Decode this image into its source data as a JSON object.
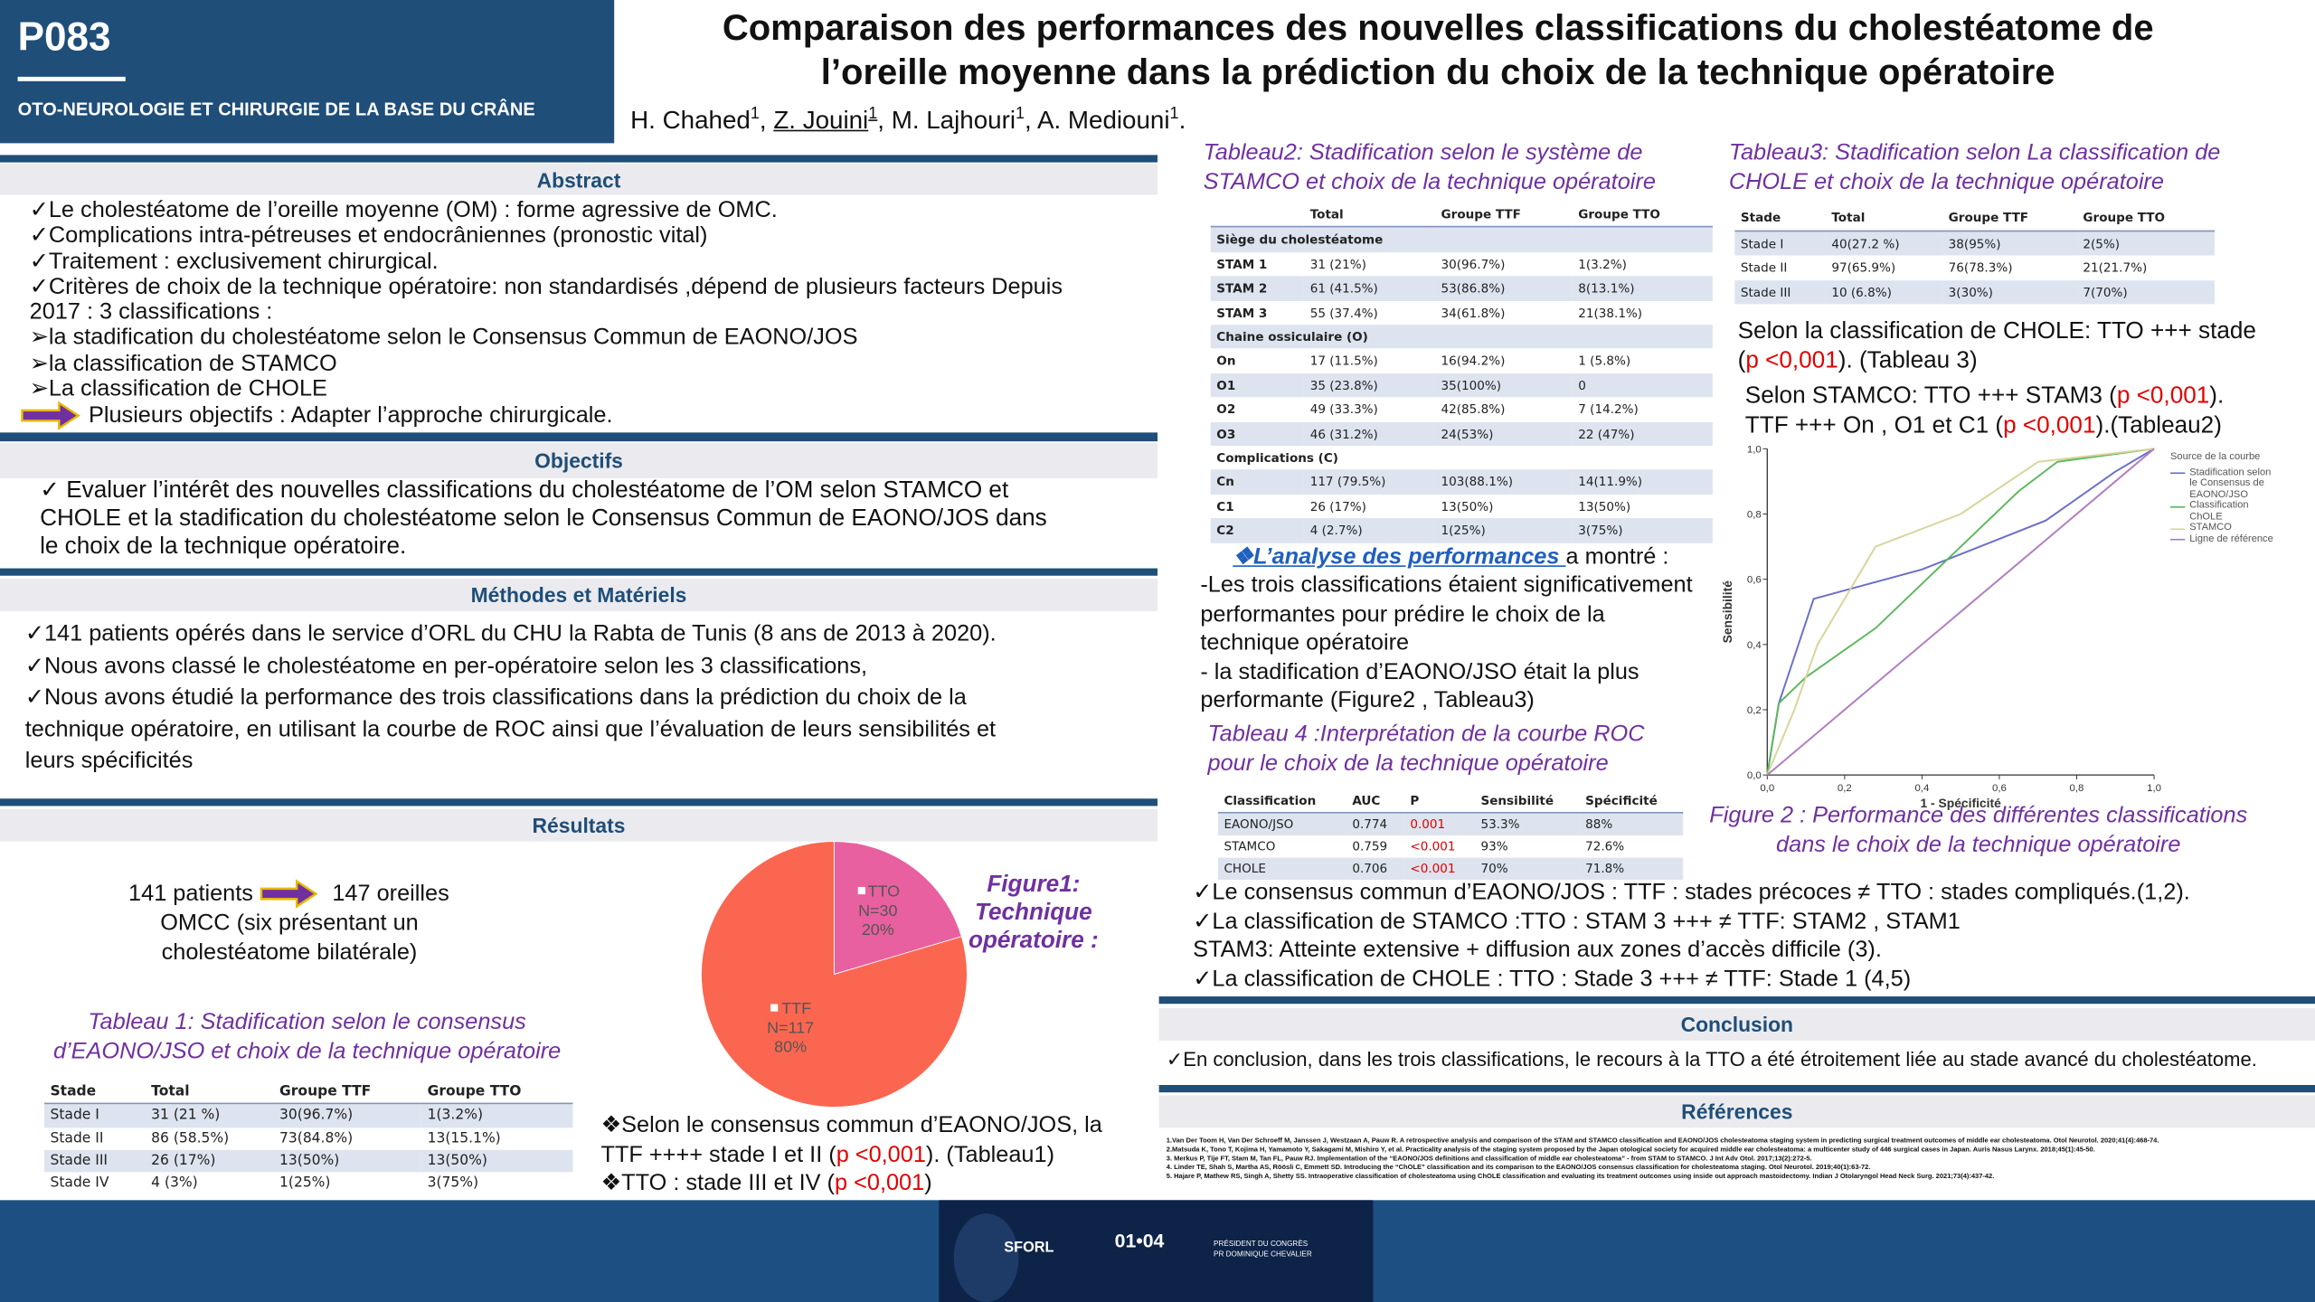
{
  "header": {
    "code": "P083",
    "section": "OTO-NEUROLOGIE ET CHIRURGIE DE LA BASE DU CRÂNE",
    "title": [
      "Comparaison des performances des nouvelles classifications du cholestéatome de",
      "l’oreille moyenne dans la prédiction du choix de la technique opératoire"
    ],
    "authors": [
      "H. Chahed",
      {
        "text": "1",
        "sup": true
      },
      ", ",
      {
        "text": "Z. Jouini",
        "underline": true
      },
      {
        "text": "1",
        "sup": true,
        "underline": true
      },
      ", M. Lajhouri",
      {
        "text": "1",
        "sup": true
      },
      ", A. Mediouni",
      {
        "text": "1",
        "sup": true
      },
      "."
    ]
  },
  "abstract": {
    "heading": "Abstract",
    "lines": [
      "✓Le cholestéatome de l’oreille moyenne (OM) : forme agressive de OMC.",
      "✓Complications intra-pétreuses et endocrâniennes (pronostic vital)",
      "✓Traitement : exclusivement chirurgical.",
      "✓Critères de choix de la technique opératoire: non standardisés ,dépend de plusieurs facteurs Depuis",
      "2017 : 3 classifications :",
      "➢la stadification du cholestéatome selon le Consensus Commun de EAONO/JOS",
      "➢la classification de STAMCO",
      "➢La classification de CHOLE"
    ],
    "goal": "Plusieurs objectifs : Adapter l’approche chirurgicale."
  },
  "objectives": {
    "heading": "Objectifs",
    "lines": [
      "✓ Evaluer l’intérêt des nouvelles classifications du cholestéatome de l’OM selon STAMCO et",
      "CHOLE et la stadification du cholestéatome selon le Consensus Commun de EAONO/JOS dans",
      "le choix de la technique opératoire."
    ]
  },
  "methods": {
    "heading": "Méthodes et Matériels",
    "lines": [
      "✓141 patients opérés dans le service d’ORL du CHU la Rabta de Tunis (8 ans de 2013 à 2020).",
      "✓Nous avons classé le cholestéatome en per-opératoire selon les 3 classifications,",
      "✓Nous avons étudié la performance des trois classifications dans la prédiction du choix de la",
      "technique opératoire, en utilisant la courbe de ROC ainsi que l’évaluation de leurs sensibilités et",
      "leurs spécificités"
    ]
  },
  "results": {
    "heading": "Résultats",
    "patients": "141 patients",
    "ears": "147 oreilles",
    "note": [
      "OMCC (six présentant un",
      "cholestéatome bilatérale)"
    ],
    "conclusions": [
      [
        "❖Selon le consensus commun d’EAONO/JOS, la"
      ],
      [
        "TTF ++++ stade I et II (",
        {
          "text": "p <0,001",
          "color": "#e00000"
        },
        "). (Tableau1)"
      ],
      [
        "❖TTO : stade III et IV  (",
        {
          "text": "p <0,001",
          "color": "#e00000"
        },
        ")"
      ]
    ]
  },
  "table1": {
    "caption": [
      "Tableau 1: Stadification selon le consensus",
      "d’EAONO/JSO et choix de la technique opératoire"
    ],
    "columns": [
      "Stade",
      "Total",
      "Groupe TTF",
      "Groupe TTO"
    ],
    "rows": [
      [
        "Stade I",
        "31 (21 %)",
        "30(96.7%)",
        "1(3.2%)"
      ],
      [
        "Stade II",
        "86 (58.5%)",
        "73(84.8%)",
        "13(15.1%)"
      ],
      [
        "Stade III",
        "26 (17%)",
        "13(50%)",
        "13(50%)"
      ],
      [
        "Stade IV",
        "4 (3%)",
        "1(25%)",
        "3(75%)"
      ]
    ]
  },
  "figure1": {
    "type": "pie",
    "title": [
      "Figure1:",
      "Technique",
      "opératoire :"
    ],
    "categories": [
      "TTO",
      "TTF"
    ],
    "values": [
      30,
      117
    ],
    "value_labels": [
      "N=30",
      "N=117"
    ],
    "percent_labels": [
      "20%",
      "80%"
    ],
    "colors": [
      "#e8609f",
      "#fb6650"
    ]
  },
  "table2": {
    "caption": [
      "Tableau2: Stadification selon le système de",
      "STAMCO et choix de la technique opératoire"
    ],
    "columns": [
      "Total",
      "Groupe TTF",
      "Groupe TTO"
    ],
    "groups": [
      {
        "title": "Siège du cholestéatome",
        "rows": [
          [
            "STAM 1",
            "31 (21%)",
            "30(96.7%)",
            "1(3.2%)"
          ],
          [
            "STAM 2",
            "61 (41.5%)",
            "53(86.8%)",
            "8(13.1%)"
          ],
          [
            "STAM 3",
            "55 (37.4%)",
            "34(61.8%)",
            "21(38.1%)"
          ]
        ]
      },
      {
        "title": "Chaine ossiculaire (O)",
        "rows": [
          [
            "On",
            "17 (11.5%)",
            "16(94.2%)",
            "1 (5.8%)"
          ],
          [
            "O1",
            "35 (23.8%)",
            "35(100%)",
            "0"
          ],
          [
            "O2",
            "49 (33.3%)",
            "42(85.8%)",
            "7 (14.2%)"
          ],
          [
            "O3",
            "46 (31.2%)",
            "24(53%)",
            "22 (47%)"
          ]
        ]
      },
      {
        "title": "Complications (C)",
        "rows": [
          [
            "Cn",
            "117 (79.5%)",
            "103(88.1%)",
            "14(11.9%)"
          ],
          [
            "C1",
            "26 (17%)",
            "13(50%)",
            "13(50%)"
          ],
          [
            "C2",
            "4 (2.7%)",
            "1(25%)",
            "3(75%)"
          ]
        ]
      }
    ]
  },
  "table3": {
    "caption": [
      "Tableau3: Stadification selon La classification de",
      "CHOLE et choix de la technique opératoire"
    ],
    "columns": [
      "Stade",
      "Total",
      "Groupe TTF",
      "Groupe TTO"
    ],
    "rows": [
      [
        "Stade I",
        "40(27.2 %)",
        "38(95%)",
        "2(5%)"
      ],
      [
        "Stade II",
        "97(65.9%)",
        "76(78.3%)",
        "21(21.7%)"
      ],
      [
        "Stade III",
        "10 (6.8%)",
        "3(30%)",
        "7(70%)"
      ]
    ]
  },
  "chole_text": [
    [
      "Selon la classification de CHOLE: TTO +++ stade"
    ],
    [
      "(",
      {
        "text": "p <0,001",
        "color": "#e00000"
      },
      "). (Tableau 3)"
    ]
  ],
  "stamco_text": [
    [
      "Selon STAMCO: TTO +++ STAM3 (",
      {
        "text": "p <0,001",
        "color": "#e00000"
      },
      ")."
    ],
    [
      "TTF +++ On , O1 et C1 (",
      {
        "text": "p <0,001",
        "color": "#e00000"
      },
      ").(Tableau2)"
    ]
  ],
  "figure2": {
    "type": "line",
    "caption": [
      "Figure 2 : Performance des différentes classifications",
      "dans le choix de la technique opératoire"
    ],
    "x_label": "1 - Spécificité",
    "y_label": "Sensibilité",
    "legend_title": "Source de la courbe",
    "legend": "right",
    "xlim": [
      0,
      1
    ],
    "ylim": [
      0,
      1
    ],
    "xticks": [
      {
        "value": 0,
        "label": "0,0"
      },
      {
        "value": 0.2,
        "label": "0,2"
      },
      {
        "value": 0.4,
        "label": "0,4"
      },
      {
        "value": 0.6,
        "label": "0,6"
      },
      {
        "value": 0.8,
        "label": "0,8"
      },
      {
        "value": 1,
        "label": "1,0"
      }
    ],
    "yticks": [
      {
        "value": 0,
        "label": "0,0"
      },
      {
        "value": 0.2,
        "label": "0,2"
      },
      {
        "value": 0.4,
        "label": "0,4"
      },
      {
        "value": 0.6,
        "label": "0,6"
      },
      {
        "value": 0.8,
        "label": "0,8"
      },
      {
        "value": 1,
        "label": "1,0"
      }
    ],
    "series": [
      {
        "name": "Stadification selon le Consensus de EAONO/JSO",
        "color": "#6a6fc8",
        "x": [
          0,
          0.03,
          0.12,
          0.4,
          0.72,
          0.9,
          1
        ],
        "values": [
          0,
          0.22,
          0.54,
          0.63,
          0.78,
          0.93,
          1
        ]
      },
      {
        "name": "Classification ChOLE",
        "color": "#5cb85c",
        "x": [
          0,
          0.03,
          0.1,
          0.28,
          0.65,
          0.75,
          1
        ],
        "values": [
          0,
          0.22,
          0.3,
          0.45,
          0.87,
          0.96,
          1
        ]
      },
      {
        "name": "STAMCO",
        "color": "#d8d49c",
        "x": [
          0,
          0.07,
          0.13,
          0.28,
          0.5,
          0.7,
          1
        ],
        "values": [
          0,
          0.2,
          0.4,
          0.7,
          0.8,
          0.96,
          1
        ]
      },
      {
        "name": "Ligne de référence",
        "color": "#b07cc0",
        "x": [
          0,
          1
        ],
        "values": [
          0,
          1
        ]
      }
    ]
  },
  "analysis": {
    "title": [
      {
        "text": "❖L’analyse des performances ",
        "color": "#1f5fbf",
        "underline": true,
        "italic": true,
        "bold": true
      },
      "a montré :"
    ],
    "lines": [
      "-Les trois classifications étaient significativement",
      "performantes pour prédire le choix de la",
      "technique opératoire",
      "-  la stadification d’EAONO/JSO était la plus",
      "performante (Figure2 , Tableau3)"
    ]
  },
  "table4": {
    "caption": [
      "Tableau 4 :Interprétation de la courbe ROC",
      "pour le choix de la technique opératoire"
    ],
    "columns": [
      "Classification",
      "AUC",
      "P",
      "Sensibilité",
      "Spécificité"
    ],
    "rows": [
      [
        "EAONO/JSO",
        "0.774",
        "0.001",
        "53.3%",
        "88%"
      ],
      [
        "STAMCO",
        "0.759",
        "<0.001",
        "93%",
        "72.6%"
      ],
      [
        "CHOLE",
        "0.706",
        "<0.001",
        "70%",
        "71.8%"
      ]
    ],
    "highlight_column": 2,
    "highlight_color": "#e00000"
  },
  "summary": {
    "lines": [
      "✓Le consensus commun d’EAONO/JOS : TTF :  stades précoces  ≠ TTO : stades compliqués.(1,2).",
      "✓La classification de STAMCO :TTO : STAM 3 +++ ≠  TTF: STAM2 , STAM1",
      "STAM3: Atteinte extensive + diffusion aux zones d’accès difficile (3).",
      "✓La classification de CHOLE :  TTO : Stade 3 +++ ≠ TTF: Stade 1 (4,5)"
    ]
  },
  "conclusion": {
    "heading": "Conclusion",
    "text": "✓En conclusion, dans les trois classifications, le recours à la TTO a été étroitement liée au stade avancé du cholestéatome."
  },
  "references": {
    "heading": "Références",
    "items": [
      "1.Van Der Toom H, Van Der Schroeff M, Janssen J, Westzaan A, Pauw R. A retrospective analysis and comparison of the STAM and STAMCO classification and EAONO/JOS cholesteatoma staging system in predicting surgical treatment outcomes of middle ear cholesteatoma. Otol Neurotol. 2020;41(4):468-74.",
      "2.Matsuda K, Tono T, Kojima H, Yamamoto Y, Sakagami M, Mishiro Y, et al. Practicality analysis of the staging system proposed by the Japan otological society for acquired middle ear cholesteatoma: a multicenter study of 446 surgical cases in Japan. Auris Nasus Larynx. 2018;45(1):45-50.",
      "3. Merkus P, Tije FT, Stam M, Tan FL, Pauw RJ. Implementation of the “EAONO/JOS definitions and classification of middle ear cholesteatoma” - from STAM to STAMCO. J Int Adv Otol. 2017;13(2):272-5.",
      "4. Linder TE, Shah S, Martha AS, Röösli C, Emmett SD. Introducing the “ChOLE” classification and its comparison to the EAONO/JOS consensus classification for cholesteatoma staging. Otol Neurotol. 2019;40(1):63-72.",
      "5. Hajare P, Mathew RS, Singh A, Shetty SS. Intraoperative classification of cholesteatoma using ChOLE classification and evaluating its treatment outcomes using inside out approach mastoidectomy. Indian J Otolaryngol Head Neck Surg. 2021;73(4):437-42."
    ]
  },
  "footer": {
    "brand": "SFORL",
    "dates": "01•04",
    "president": [
      "PRÉSIDENT DU CONGRÈS",
      "PR DOMINIQUE CHEVALIER"
    ]
  }
}
